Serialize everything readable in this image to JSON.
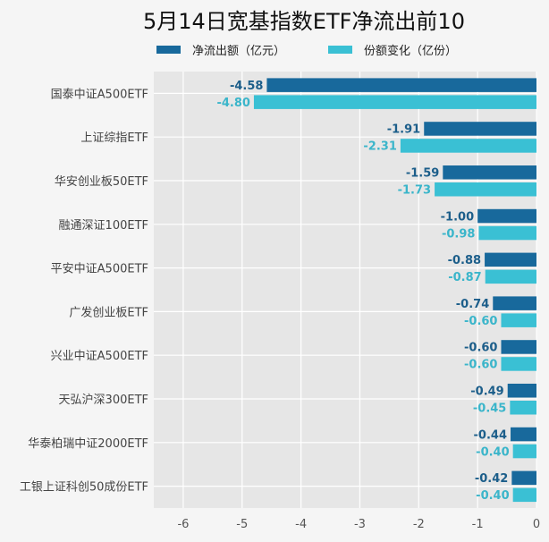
{
  "chart_data": {
    "type": "bar",
    "orientation": "horizontal",
    "title": "5月14日宽基指数ETF净流出前10",
    "categories": [
      "国泰中证A500ETF",
      "上证综指ETF",
      "华安创业板50ETF",
      "融通深证100ETF",
      "平安中证A500ETF",
      "广发创业板ETF",
      "兴业中证A500ETF",
      "天弘沪深300ETF",
      "华泰柏瑞中证2000ETF",
      "工银上证科创50成份ETF"
    ],
    "series": [
      {
        "name": "净流出额（亿元）",
        "color": "#18699c",
        "label_color": "#1c5e8a",
        "values": [
          -4.58,
          -1.91,
          -1.59,
          -1.0,
          -0.88,
          -0.74,
          -0.6,
          -0.49,
          -0.44,
          -0.42
        ],
        "labels": [
          "-4.58",
          "-1.91",
          "-1.59",
          "-1.00",
          "-0.88",
          "-0.74",
          "-0.60",
          "-0.49",
          "-0.44",
          "-0.42"
        ]
      },
      {
        "name": "份额变化（亿份）",
        "color": "#3ac0d4",
        "label_color": "#3ab5ca",
        "values": [
          -4.8,
          -2.31,
          -1.73,
          -0.98,
          -0.87,
          -0.6,
          -0.6,
          -0.45,
          -0.4,
          -0.4
        ],
        "labels": [
          "-4.80",
          "-2.31",
          "-1.73",
          "-0.98",
          "-0.87",
          "-0.60",
          "-0.60",
          "-0.45",
          "-0.40",
          "-0.40"
        ]
      }
    ],
    "xlim": [
      -6.5,
      0
    ],
    "xticks": [
      "-6",
      "-5",
      "-4",
      "-3",
      "-2",
      "-1",
      "0"
    ],
    "grid": true,
    "legend_position": "top",
    "background": "#e6e6e6"
  }
}
